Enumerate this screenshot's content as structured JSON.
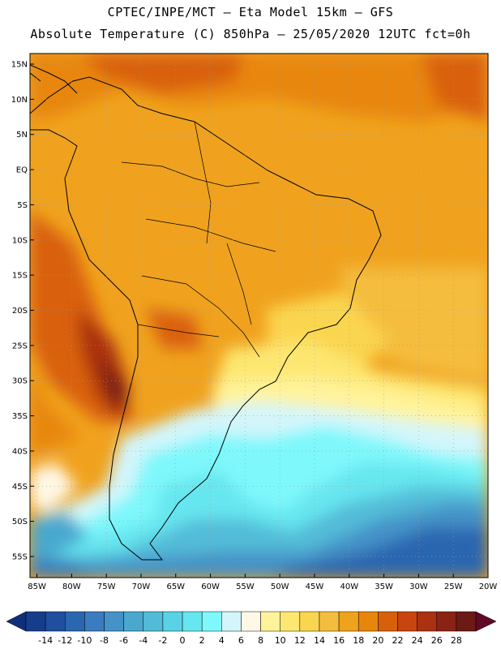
{
  "header": {
    "line1": "CPTEC/INPE/MCT –  Eta Model 15km – GFS",
    "line2": "Absolute Temperature (C) 850hPa – 25/05/2020 12UTC fct=0h"
  },
  "map": {
    "lat_labels": [
      "15N",
      "10N",
      "5N",
      "EQ",
      "5S",
      "10S",
      "15S",
      "20S",
      "25S",
      "30S",
      "35S",
      "40S",
      "45S",
      "50S",
      "55S"
    ],
    "lat_values": [
      15,
      10,
      5,
      0,
      -5,
      -10,
      -15,
      -20,
      -25,
      -30,
      -35,
      -40,
      -45,
      -50,
      -55
    ],
    "lon_labels": [
      "85W",
      "80W",
      "75W",
      "70W",
      "65W",
      "60W",
      "55W",
      "50W",
      "45W",
      "40W",
      "35W",
      "30W",
      "25W",
      "20W"
    ],
    "lon_values": [
      -85,
      -80,
      -75,
      -70,
      -65,
      -60,
      -55,
      -50,
      -45,
      -40,
      -35,
      -30,
      -25,
      -20
    ],
    "lat_range": [
      -58,
      16.5
    ],
    "lon_range": [
      -86,
      -20
    ]
  },
  "colorbar": {
    "labels": [
      "-14",
      "-12",
      "-10",
      "-8",
      "-6",
      "-4",
      "-2",
      "0",
      "2",
      "4",
      "6",
      "8",
      "10",
      "12",
      "14",
      "16",
      "18",
      "20",
      "22",
      "24",
      "26",
      "28"
    ],
    "colors": [
      "#163c8c",
      "#1f4f9e",
      "#2b66b0",
      "#3a7cbf",
      "#4592c8",
      "#4aa8cf",
      "#52bcd8",
      "#5ad2e6",
      "#66e6ef",
      "#7ef8fb",
      "#d3f6fb",
      "#fff8e6",
      "#fff39a",
      "#fde771",
      "#fad54f",
      "#f5bd3e",
      "#efa21c",
      "#e8860c",
      "#d9600a",
      "#c84510",
      "#aa3111",
      "#8a2313",
      "#6c1a14"
    ],
    "under_color": "#102e7a",
    "over_color": "#600a26"
  },
  "colors": {
    "warm_orange": "#f0a21e",
    "hot_red": "#d9600a",
    "pale_yellow": "#fff39a",
    "cold_blue": "#3a7cbf",
    "cyan": "#66e6ef"
  }
}
